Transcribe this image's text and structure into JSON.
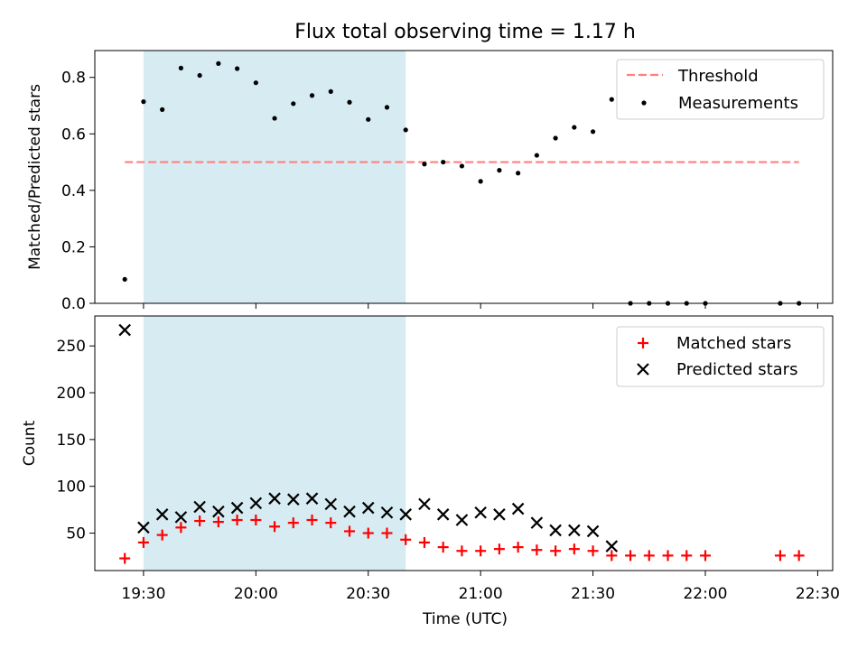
{
  "chart_data": {
    "title": "Flux total observing time = 1.17 h",
    "x_axis": {
      "label": "Time (UTC)",
      "range": [
        "19:17",
        "22:34"
      ],
      "ticks": [
        "19:30",
        "20:00",
        "20:30",
        "21:00",
        "21:30",
        "22:00",
        "22:30"
      ]
    },
    "highlight_span": {
      "start": "19:30",
      "end": "20:40",
      "color": "#add8e6"
    },
    "top": {
      "type": "scatter",
      "ylabel": "Matched/Predicted stars",
      "ylim": [
        0,
        0.895
      ],
      "yticks": [
        "0.0",
        "0.2",
        "0.4",
        "0.6",
        "0.8"
      ],
      "yticks_values": [
        0,
        0.2,
        0.4,
        0.6,
        0.8
      ],
      "legend_position": "upper-right",
      "threshold": {
        "name": "Threshold",
        "value": 0.5,
        "x_start": "19:25",
        "x_end": "22:25",
        "color": "#ff7f7f"
      },
      "measurements": {
        "name": "Measurements",
        "color": "#000000",
        "points": [
          [
            "19:25",
            0.085
          ],
          [
            "19:30",
            0.714
          ],
          [
            "19:35",
            0.686
          ],
          [
            "19:40",
            0.833
          ],
          [
            "19:45",
            0.807
          ],
          [
            "19:50",
            0.849
          ],
          [
            "19:55",
            0.831
          ],
          [
            "20:00",
            0.781
          ],
          [
            "20:05",
            0.655
          ],
          [
            "20:10",
            0.707
          ],
          [
            "20:15",
            0.736
          ],
          [
            "20:20",
            0.75
          ],
          [
            "20:25",
            0.712
          ],
          [
            "20:30",
            0.651
          ],
          [
            "20:35",
            0.694
          ],
          [
            "20:40",
            0.614
          ],
          [
            "20:45",
            0.493
          ],
          [
            "20:50",
            0.5
          ],
          [
            "20:55",
            0.486
          ],
          [
            "21:00",
            0.432
          ],
          [
            "21:05",
            0.471
          ],
          [
            "21:10",
            0.461
          ],
          [
            "21:15",
            0.524
          ],
          [
            "21:20",
            0.585
          ],
          [
            "21:25",
            0.623
          ],
          [
            "21:30",
            0.608
          ],
          [
            "21:35",
            0.722
          ],
          [
            "21:40",
            0.0
          ],
          [
            "21:45",
            0.0
          ],
          [
            "21:50",
            0.0
          ],
          [
            "21:55",
            0.0
          ],
          [
            "22:00",
            0.0
          ],
          [
            "22:20",
            0.0
          ],
          [
            "22:25",
            0.0
          ]
        ]
      }
    },
    "bottom": {
      "type": "scatter",
      "ylabel": "Count",
      "ylim": [
        10,
        282
      ],
      "yticks": [
        "50",
        "100",
        "150",
        "200",
        "250"
      ],
      "yticks_values": [
        50,
        100,
        150,
        200,
        250
      ],
      "legend_position": "upper-right",
      "series": [
        {
          "name": "Matched stars",
          "marker": "plus",
          "color": "#ff0000",
          "points": [
            [
              "19:25",
              23
            ],
            [
              "19:30",
              40
            ],
            [
              "19:35",
              48
            ],
            [
              "19:40",
              56
            ],
            [
              "19:45",
              63
            ],
            [
              "19:50",
              62
            ],
            [
              "19:55",
              64
            ],
            [
              "20:00",
              64
            ],
            [
              "20:05",
              57
            ],
            [
              "20:10",
              61
            ],
            [
              "20:15",
              64
            ],
            [
              "20:20",
              61
            ],
            [
              "20:25",
              52
            ],
            [
              "20:30",
              50
            ],
            [
              "20:35",
              50
            ],
            [
              "20:40",
              43
            ],
            [
              "20:45",
              40
            ],
            [
              "20:50",
              35
            ],
            [
              "20:55",
              31
            ],
            [
              "21:00",
              31
            ],
            [
              "21:05",
              33
            ],
            [
              "21:10",
              35
            ],
            [
              "21:15",
              32
            ],
            [
              "21:20",
              31
            ],
            [
              "21:25",
              33
            ],
            [
              "21:30",
              31
            ],
            [
              "21:35",
              26
            ],
            [
              "21:40",
              26
            ],
            [
              "21:45",
              26
            ],
            [
              "21:50",
              26
            ],
            [
              "21:55",
              26
            ],
            [
              "22:00",
              26
            ],
            [
              "22:20",
              26
            ],
            [
              "22:25",
              26
            ]
          ]
        },
        {
          "name": "Predicted stars",
          "marker": "x",
          "color": "#000000",
          "points": [
            [
              "19:25",
              267
            ],
            [
              "19:30",
              56
            ],
            [
              "19:35",
              70
            ],
            [
              "19:40",
              67
            ],
            [
              "19:45",
              78
            ],
            [
              "19:50",
              73
            ],
            [
              "19:55",
              77
            ],
            [
              "20:00",
              82
            ],
            [
              "20:05",
              87
            ],
            [
              "20:10",
              86
            ],
            [
              "20:15",
              87
            ],
            [
              "20:20",
              81
            ],
            [
              "20:25",
              73
            ],
            [
              "20:30",
              77
            ],
            [
              "20:35",
              72
            ],
            [
              "20:40",
              70
            ],
            [
              "20:45",
              81
            ],
            [
              "20:50",
              70
            ],
            [
              "20:55",
              64
            ],
            [
              "21:00",
              72
            ],
            [
              "21:05",
              70
            ],
            [
              "21:10",
              76
            ],
            [
              "21:15",
              61
            ],
            [
              "21:20",
              53
            ],
            [
              "21:25",
              53
            ],
            [
              "21:30",
              52
            ],
            [
              "21:35",
              36
            ]
          ]
        }
      ]
    }
  }
}
